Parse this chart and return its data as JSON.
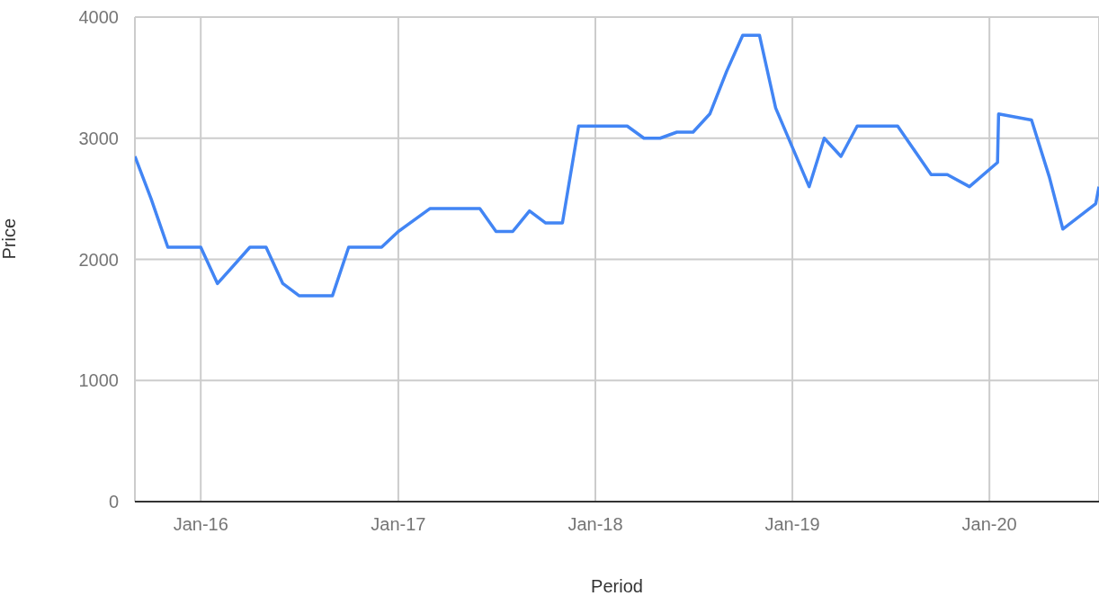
{
  "chart_data": {
    "type": "line",
    "xlabel": "Period",
    "ylabel": "Price",
    "x": [
      "2015-09-01",
      "2015-10-01",
      "2015-11-01",
      "2016-01-01",
      "2016-02-01",
      "2016-04-01",
      "2016-05-01",
      "2016-06-01",
      "2016-07-01",
      "2016-09-01",
      "2016-10-01",
      "2016-12-01",
      "2017-01-01",
      "2017-03-01",
      "2017-06-01",
      "2017-07-01",
      "2017-08-01",
      "2017-09-01",
      "2017-10-01",
      "2017-11-01",
      "2017-12-01",
      "2018-03-01",
      "2018-04-01",
      "2018-05-01",
      "2018-06-01",
      "2018-07-01",
      "2018-08-01",
      "2018-09-01",
      "2018-10-01",
      "2018-11-01",
      "2018-12-01",
      "2019-02-01",
      "2019-03-01",
      "2019-04-01",
      "2019-05-01",
      "2019-07-15",
      "2019-09-15",
      "2019-10-15",
      "2019-11-25",
      "2020-01-16",
      "2020-01-18",
      "2020-03-19",
      "2020-04-21",
      "2020-05-16",
      "2020-07-16",
      "2020-07-22"
    ],
    "series": [
      {
        "color": "#4285f4",
        "values": [
          2850,
          2500,
          2100,
          2100,
          1800,
          2100,
          2100,
          1800,
          1700,
          1700,
          2100,
          2100,
          2230,
          2420,
          2420,
          2230,
          2230,
          2400,
          2300,
          2300,
          3100,
          3100,
          3000,
          3000,
          3050,
          3050,
          3200,
          3550,
          3850,
          3850,
          3250,
          2600,
          3000,
          2850,
          3100,
          3100,
          2700,
          2700,
          2600,
          2800,
          3200,
          3150,
          2680,
          2250,
          2460,
          2600
        ]
      }
    ],
    "xlim": [
      "2015-09-01",
      "2020-07-22"
    ],
    "xticks": [
      {
        "value": "2016-01-01",
        "label": "Jan-16"
      },
      {
        "value": "2017-01-01",
        "label": "Jan-17"
      },
      {
        "value": "2018-01-01",
        "label": "Jan-18"
      },
      {
        "value": "2019-01-01",
        "label": "Jan-19"
      },
      {
        "value": "2020-01-01",
        "label": "Jan-20"
      }
    ],
    "ylim": [
      0,
      4000
    ],
    "yticks": [
      0,
      1000,
      2000,
      3000,
      4000
    ],
    "grid": true,
    "legend": false,
    "marker": "none",
    "line_style": "solid"
  }
}
